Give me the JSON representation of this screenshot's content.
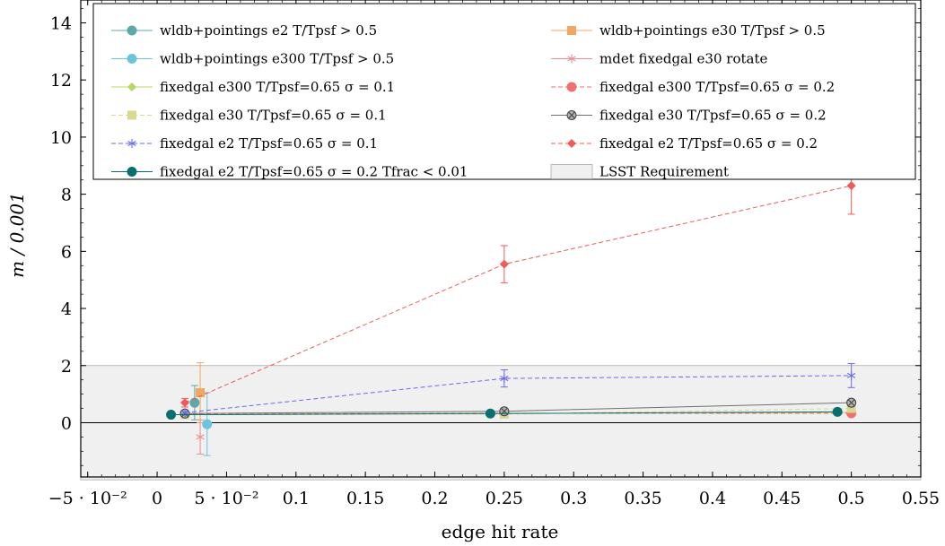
{
  "chart_data": {
    "type": "line",
    "title": "",
    "xlabel": "edge hit rate",
    "ylabel": "m / 0.001",
    "xlim": [
      -0.055,
      0.55
    ],
    "ylim": [
      -1.9,
      14.8
    ],
    "xticks": [
      {
        "v": -0.05,
        "label": "−5 · 10⁻²"
      },
      {
        "v": 0,
        "label": "0"
      },
      {
        "v": 0.05,
        "label": "5 · 10⁻²"
      },
      {
        "v": 0.1,
        "label": "0.1"
      },
      {
        "v": 0.15,
        "label": "0.15"
      },
      {
        "v": 0.2,
        "label": "0.2"
      },
      {
        "v": 0.25,
        "label": "0.25"
      },
      {
        "v": 0.3,
        "label": "0.3"
      },
      {
        "v": 0.35,
        "label": "0.35"
      },
      {
        "v": 0.4,
        "label": "0.4"
      },
      {
        "v": 0.45,
        "label": "0.45"
      },
      {
        "v": 0.5,
        "label": "0.5"
      },
      {
        "v": 0.55,
        "label": "0.55"
      }
    ],
    "yticks": [
      {
        "v": 0,
        "label": "0"
      },
      {
        "v": 2,
        "label": "2"
      },
      {
        "v": 4,
        "label": "4"
      },
      {
        "v": 6,
        "label": "6"
      },
      {
        "v": 8,
        "label": "8"
      },
      {
        "v": 10,
        "label": "10"
      },
      {
        "v": 12,
        "label": "12"
      },
      {
        "v": 14,
        "label": "14"
      }
    ],
    "band": {
      "name": "LSST Requirement",
      "y0": -2,
      "y1": 2,
      "color": "#f0f0f0"
    },
    "zero_line": 0,
    "legend_placement": "top, two columns",
    "series": [
      {
        "name": "wldb+pointings e2 T/Tpsf > 0.5",
        "color": "#5fa8a8",
        "marker": "circle",
        "dash": "",
        "x": [
          0.027
        ],
        "y": [
          0.7
        ],
        "err": [
          0.6
        ]
      },
      {
        "name": "wldb+pointings e30 T/Tpsf > 0.5",
        "color": "#f0a860",
        "marker": "square",
        "dash": "",
        "x": [
          0.031
        ],
        "y": [
          1.05
        ],
        "err": [
          1.05
        ]
      },
      {
        "name": "wldb+pointings e300 T/Tpsf > 0.5",
        "color": "#6cc4dc",
        "marker": "circle",
        "dash": "",
        "x": [
          0.036
        ],
        "y": [
          -0.05
        ],
        "err": [
          1.1
        ]
      },
      {
        "name": "mdet fixedgal e30 rotate",
        "color": "#f08c8c",
        "marker": "asterisk",
        "dash": "",
        "x": [
          0.031
        ],
        "y": [
          -0.5
        ],
        "err": [
          0.6
        ]
      },
      {
        "name": "fixedgal e300 T/Tpsf=0.65 σ = 0.1",
        "color": "#b8d860",
        "marker": "diamond",
        "dash": "",
        "x": [
          0.02,
          0.25,
          0.5
        ],
        "y": [
          0.28,
          0.32,
          0.36
        ],
        "err": [
          0,
          0,
          0
        ]
      },
      {
        "name": "fixedgal e300 T/Tpsf=0.65 σ = 0.2",
        "color": "#f07070",
        "marker": "circle",
        "dash": "5,3",
        "x": [
          0.02,
          0.25,
          0.5
        ],
        "y": [
          0.3,
          0.33,
          0.33
        ],
        "err": [
          0,
          0,
          0
        ]
      },
      {
        "name": "fixedgal e30 T/Tpsf=0.65 σ = 0.1",
        "color": "#d8d890",
        "marker": "square",
        "dash": "5,3",
        "x": [
          0.02,
          0.25,
          0.5
        ],
        "y": [
          0.28,
          0.3,
          0.5
        ],
        "err": [
          0,
          0,
          0
        ]
      },
      {
        "name": "fixedgal e30 T/Tpsf=0.65 σ = 0.2",
        "color": "#707070",
        "marker": "otimes",
        "dash": "",
        "x": [
          0.02,
          0.25,
          0.5
        ],
        "y": [
          0.32,
          0.4,
          0.7
        ],
        "err": [
          0,
          0,
          0
        ]
      },
      {
        "name": "fixedgal e2 T/Tpsf=0.65 σ = 0.1",
        "color": "#6a6af0",
        "marker": "star",
        "dash": "5,3",
        "x": [
          0.02,
          0.25,
          0.5
        ],
        "y": [
          0.35,
          1.55,
          1.65
        ],
        "err": [
          0,
          0.3,
          0.42
        ]
      },
      {
        "name": "fixedgal e2 T/Tpsf=0.65 σ = 0.2",
        "color": "#f05a5a",
        "marker": "diamond",
        "dash": "5,3",
        "x": [
          0.02,
          0.25,
          0.5
        ],
        "y": [
          0.7,
          5.55,
          8.3
        ],
        "err": [
          0.15,
          0.65,
          1.0
        ]
      },
      {
        "name": "fixedgal e2 T/Tpsf=0.65 σ = 0.2 Tfrac < 0.01",
        "color": "#0a6e6e",
        "marker": "circle",
        "dash": "",
        "x": [
          0.01,
          0.24,
          0.49
        ],
        "y": [
          0.28,
          0.32,
          0.38
        ],
        "err": [
          0,
          0,
          0
        ]
      }
    ]
  }
}
